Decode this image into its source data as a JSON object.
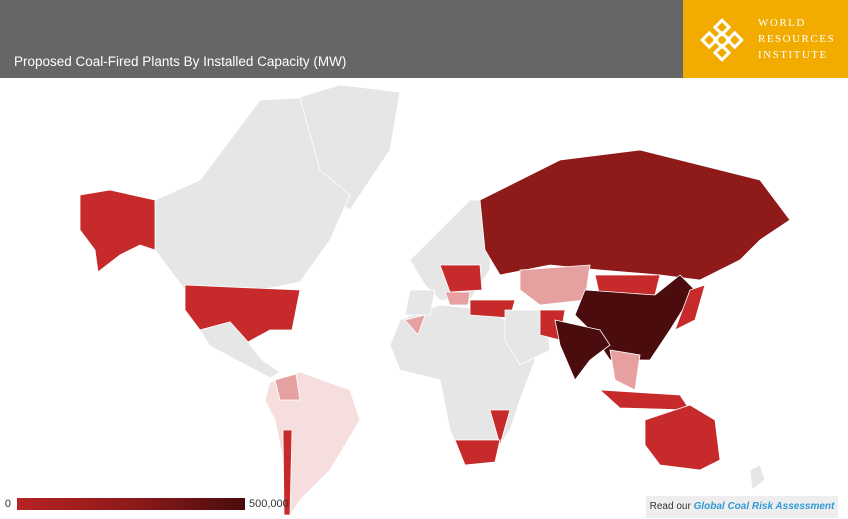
{
  "header": {
    "title": "Proposed Coal-Fired Plants By Installed Capacity (MW)",
    "logo": [
      "WORLD",
      "RESOURCES",
      "INSTITUTE"
    ]
  },
  "legend": {
    "min": 0,
    "max": {
      "value": 500000,
      "label": "500,000"
    },
    "colors": [
      "#b82222",
      "#8e1a1a",
      "#4a0c0c"
    ]
  },
  "link": {
    "prefix": "Read our",
    "text": "Global Coal Risk Assessment"
  }
}
